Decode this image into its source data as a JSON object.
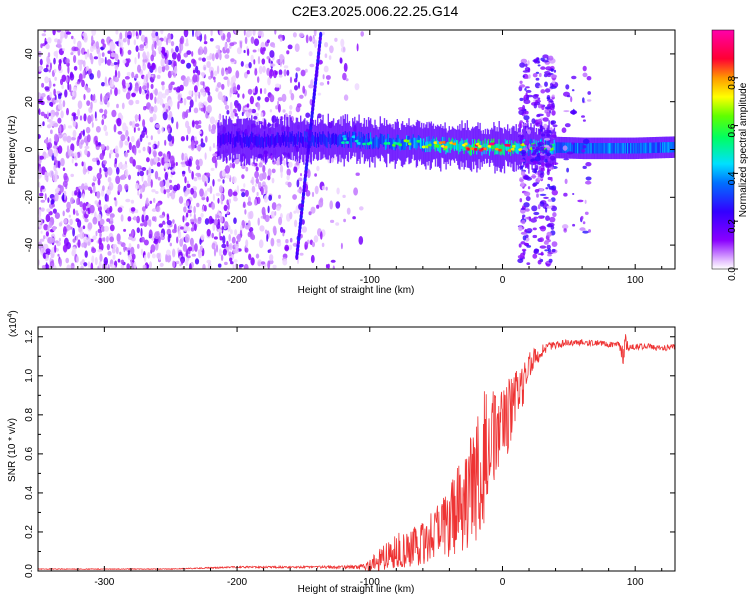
{
  "figure": {
    "title": "C2E3.2025.006.22.25.G14"
  },
  "chart_data": [
    {
      "type": "heatmap",
      "xlabel": "Height of straight line (km)",
      "ylabel": "Frequency (Hz)",
      "xlim": [
        -350,
        130
      ],
      "ylim": [
        -50,
        50
      ],
      "xticks": [
        -300,
        -200,
        -100,
        0,
        100
      ],
      "yticks": [
        -40,
        -20,
        0,
        20,
        40
      ],
      "xtick_labels": [
        "-300",
        "-200",
        "-100",
        "0",
        "100"
      ],
      "ytick_labels": [
        "-40",
        "-20",
        "0",
        "20",
        "40"
      ],
      "colorbar": {
        "label": "Normalized spectral amplitude",
        "range": [
          0,
          1
        ],
        "ticks": [
          0.0,
          0.2,
          0.4,
          0.6,
          0.8
        ],
        "tick_labels": [
          "0.0",
          "0.2",
          "0.4",
          "0.6",
          "0.8"
        ],
        "colormap": [
          "#ffffff",
          "#8a00ff",
          "#3300ff",
          "#00e0ff",
          "#00ff40",
          "#ffff00",
          "#ff8800",
          "#ff0033",
          "#ff00aa"
        ]
      },
      "features": {
        "noise_region_x": [
          -350,
          -125
        ],
        "carrier_frequency_hz": [
          [
            -200,
            4
          ],
          [
            -160,
            4
          ],
          [
            -130,
            4
          ],
          [
            -110,
            4
          ],
          [
            -90,
            3
          ],
          [
            -70,
            3
          ],
          [
            -50,
            2
          ],
          [
            -30,
            1
          ],
          [
            0,
            1
          ],
          [
            30,
            1
          ],
          [
            60,
            0.5
          ],
          [
            100,
            0.5
          ],
          [
            130,
            1
          ]
        ],
        "carrier_peak_amplitude": [
          [
            -200,
            0.35
          ],
          [
            -160,
            0.4
          ],
          [
            -130,
            0.45
          ],
          [
            -110,
            0.5
          ],
          [
            -90,
            0.55
          ],
          [
            -70,
            0.6
          ],
          [
            -50,
            0.7
          ],
          [
            -30,
            0.8
          ],
          [
            0,
            0.85
          ],
          [
            30,
            0.6
          ],
          [
            60,
            0.55
          ],
          [
            100,
            0.55
          ],
          [
            130,
            0.55
          ]
        ],
        "diagonal_streak": {
          "x": [
            -155,
            -137
          ],
          "y": [
            -45,
            48
          ]
        },
        "vertical_bands_x": [
          17,
          27,
          36,
          50,
          62
        ]
      }
    },
    {
      "type": "line",
      "xlabel": "Height of straight line (km)",
      "ylabel": "SNR (10 * v/v)",
      "y_multiplier_label": "(x10",
      "y_multiplier_exponent": "4",
      "xlim": [
        -350,
        130
      ],
      "ylim": [
        0,
        1.25
      ],
      "xticks": [
        -300,
        -200,
        -100,
        0,
        100
      ],
      "yticks": [
        0.0,
        0.2,
        0.4,
        0.6,
        0.8,
        1.0,
        1.2
      ],
      "xtick_labels": [
        "-300",
        "-200",
        "-100",
        "0",
        "100"
      ],
      "ytick_labels": [
        "0.0",
        "0.2",
        "0.4",
        "0.6",
        "0.8",
        "1.0",
        "1.2"
      ],
      "line_color": "#ee3333",
      "x": [
        -350,
        -300,
        -250,
        -200,
        -150,
        -120,
        -110,
        -100,
        -90,
        -80,
        -70,
        -60,
        -50,
        -40,
        -30,
        -20,
        -15,
        -10,
        -5,
        0,
        5,
        10,
        15,
        20,
        25,
        30,
        35,
        40,
        50,
        60,
        70,
        80,
        88,
        91,
        93,
        95,
        100,
        110,
        120,
        130
      ],
      "values": [
        0.01,
        0.01,
        0.01,
        0.02,
        0.02,
        0.02,
        0.02,
        0.03,
        0.07,
        0.1,
        0.12,
        0.15,
        0.2,
        0.25,
        0.35,
        0.45,
        0.55,
        0.7,
        0.7,
        0.75,
        0.8,
        0.85,
        0.95,
        1.05,
        1.1,
        1.13,
        1.15,
        1.16,
        1.17,
        1.17,
        1.17,
        1.16,
        1.16,
        1.1,
        1.18,
        1.15,
        1.15,
        1.15,
        1.14,
        1.15
      ],
      "noise_amplitude": [
        0.002,
        0.002,
        0.002,
        0.004,
        0.005,
        0.008,
        0.01,
        0.03,
        0.07,
        0.09,
        0.1,
        0.12,
        0.14,
        0.18,
        0.25,
        0.3,
        0.35,
        0.28,
        0.22,
        0.18,
        0.2,
        0.18,
        0.12,
        0.08,
        0.05,
        0.03,
        0.02,
        0.02,
        0.015,
        0.015,
        0.015,
        0.015,
        0.015,
        0.05,
        0.05,
        0.02,
        0.015,
        0.015,
        0.015,
        0.015
      ]
    }
  ]
}
